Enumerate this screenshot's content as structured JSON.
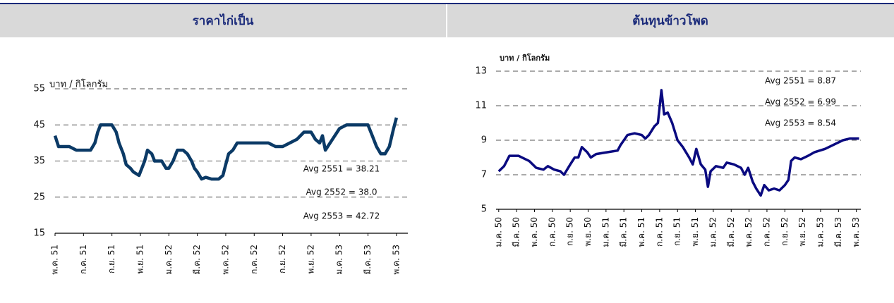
{
  "chart_data": [
    {
      "type": "line",
      "title": "ราคาไก่เป็น",
      "y_label": "บาท / กิโลกรัม",
      "annotations": [
        "Avg 2551 = 38.21",
        "Avg 2552 = 38.0",
        "Avg 2553 = 42.72"
      ],
      "xlim": [
        0,
        24.8
      ],
      "xticks": [
        {
          "value": 0,
          "label": "พ.ค. 51"
        },
        {
          "value": 2,
          "label": "ก.ค. 51"
        },
        {
          "value": 4,
          "label": "ก.ย. 51"
        },
        {
          "value": 6,
          "label": "พ.ย. 51"
        },
        {
          "value": 8,
          "label": "ม.ค. 52"
        },
        {
          "value": 10,
          "label": "มี.ค. 52"
        },
        {
          "value": 12,
          "label": "พ.ค. 52"
        },
        {
          "value": 14,
          "label": "ก.ค. 52"
        },
        {
          "value": 16,
          "label": "ก.ย. 52"
        },
        {
          "value": 18,
          "label": "พ.ย. 52"
        },
        {
          "value": 20,
          "label": "ม.ค. 53"
        },
        {
          "value": 22,
          "label": "มี.ค. 53"
        },
        {
          "value": 24,
          "label": "พ.ค. 53"
        }
      ],
      "ylim": [
        15,
        55
      ],
      "yticks": [
        15,
        25,
        35,
        45,
        55
      ],
      "grid": true,
      "series": [
        {
          "color": "#0b3a66",
          "x": [
            0,
            0.25,
            1,
            1.5,
            2,
            2.5,
            2.8,
            3,
            3.2,
            3.5,
            4,
            4.3,
            4.5,
            4.8,
            5,
            5.3,
            5.5,
            5.9,
            6,
            6.3,
            6.5,
            6.8,
            7,
            7.5,
            7.8,
            8,
            8.3,
            8.6,
            9,
            9.3,
            9.6,
            9.8,
            10,
            10.3,
            10.6,
            11,
            11.5,
            11.8,
            12,
            12.2,
            12.5,
            12.8,
            13,
            14,
            15,
            15.5,
            16,
            16.5,
            17,
            17.5,
            18,
            18.3,
            18.6,
            18.8,
            19,
            19.5,
            20,
            20.5,
            21,
            21.5,
            22,
            22.3,
            22.6,
            22.9,
            23.2,
            23.5,
            23.8,
            24
          ],
          "values": [
            42,
            39,
            39,
            38,
            38,
            38,
            40,
            43,
            45,
            45,
            45,
            43,
            40,
            37,
            34,
            33,
            32,
            31,
            32,
            35,
            38,
            37,
            35,
            35,
            33,
            33,
            35,
            38,
            38,
            37,
            35,
            33,
            32,
            30,
            30.5,
            30,
            30,
            31,
            34,
            37,
            38,
            40,
            40,
            40,
            40,
            39,
            39,
            40,
            41,
            43,
            43,
            41,
            40,
            42,
            38,
            41,
            44,
            45,
            45,
            45,
            45,
            42,
            39,
            37,
            37,
            39,
            44,
            47
          ]
        }
      ]
    },
    {
      "type": "line",
      "title": "ต้นทุนข้าวโพด",
      "y_label": "บาท / กิโลกรัม",
      "annotations": [
        "Avg 2551 = 8.87",
        "Avg 2552 = 6.99",
        "Avg 2553 = 8.54"
      ],
      "xlim": [
        -0.3,
        40.5
      ],
      "xticks": [
        {
          "value": 0,
          "label": "ม.ค. 50"
        },
        {
          "value": 2,
          "label": "มี.ค. 50"
        },
        {
          "value": 4,
          "label": "พ.ค. 50"
        },
        {
          "value": 6,
          "label": "ก.ค. 50"
        },
        {
          "value": 8,
          "label": "ก.ย. 50"
        },
        {
          "value": 10,
          "label": "พ.ย. 50"
        },
        {
          "value": 12,
          "label": "ม.ค. 51"
        },
        {
          "value": 14,
          "label": "มี.ค. 51"
        },
        {
          "value": 16,
          "label": "พ.ค. 51"
        },
        {
          "value": 18,
          "label": "ก.ค. 51"
        },
        {
          "value": 20,
          "label": "ก.ย. 51"
        },
        {
          "value": 22,
          "label": "พ.ย. 51"
        },
        {
          "value": 24,
          "label": "ม.ค. 52"
        },
        {
          "value": 26,
          "label": "มี.ค. 52"
        },
        {
          "value": 28,
          "label": "พ.ค. 52"
        },
        {
          "value": 30,
          "label": "ก.ค. 52"
        },
        {
          "value": 32,
          "label": "ก.ย. 52"
        },
        {
          "value": 34,
          "label": "พ.ย. 52"
        },
        {
          "value": 36,
          "label": "ม.ค. 53"
        },
        {
          "value": 38,
          "label": "มี.ค. 53"
        },
        {
          "value": 40,
          "label": "พ.ค. 53"
        }
      ],
      "ylim": [
        5,
        13
      ],
      "yticks": [
        5,
        7,
        9,
        11,
        13
      ],
      "grid": true,
      "series": [
        {
          "color": "#0a0a80",
          "x": [
            0,
            0.6,
            1.2,
            2.2,
            3.4,
            4.2,
            5.0,
            5.5,
            6.2,
            6.9,
            7.3,
            8.0,
            8.5,
            8.9,
            9.3,
            9.9,
            10.3,
            10.9,
            12.1,
            13.3,
            13.6,
            14.4,
            15.2,
            16.0,
            16.4,
            16.8,
            17.4,
            17.8,
            18.2,
            18.5,
            18.9,
            19.4,
            20.0,
            20.6,
            21.3,
            21.7,
            22.1,
            22.6,
            23.1,
            23.4,
            23.7,
            24.3,
            25.1,
            25.5,
            26.3,
            27.1,
            27.5,
            27.9,
            28.4,
            28.8,
            29.3,
            29.7,
            30.2,
            30.8,
            31.4,
            32.0,
            32.4,
            32.7,
            33.1,
            33.8,
            34.6,
            35.3,
            36.5,
            37.7,
            38.5,
            39.3,
            40.3
          ],
          "values": [
            7.2,
            7.5,
            8.1,
            8.1,
            7.8,
            7.4,
            7.3,
            7.5,
            7.3,
            7.2,
            7.0,
            7.6,
            8.0,
            8.0,
            8.6,
            8.3,
            8.0,
            8.2,
            8.3,
            8.4,
            8.7,
            9.3,
            9.4,
            9.3,
            9.1,
            9.3,
            9.8,
            10.0,
            11.9,
            10.5,
            10.6,
            10.0,
            9.0,
            8.6,
            8.0,
            7.6,
            8.5,
            7.6,
            7.3,
            6.3,
            7.2,
            7.5,
            7.4,
            7.7,
            7.6,
            7.4,
            7.0,
            7.4,
            6.6,
            6.2,
            5.8,
            6.4,
            6.1,
            6.2,
            6.1,
            6.4,
            6.7,
            7.8,
            8.0,
            7.9,
            8.1,
            8.3,
            8.5,
            8.8,
            9.0,
            9.1,
            9.1
          ]
        }
      ]
    }
  ]
}
